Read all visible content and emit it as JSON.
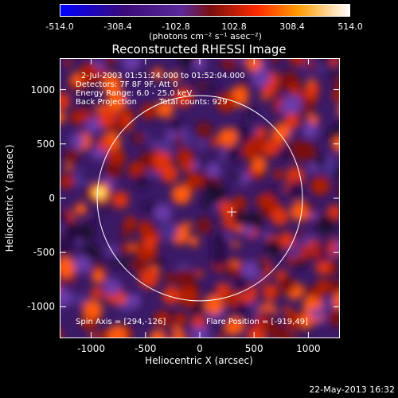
{
  "colorbar": {
    "tick_labels": [
      "-514.0",
      "-308.4",
      "-102.8",
      "102.8",
      "308.4",
      "514.0"
    ],
    "tick_values": [
      -514.0,
      -308.4,
      -102.8,
      102.8,
      308.4,
      514.0
    ],
    "units": "(photons cm⁻² s⁻¹ asec⁻²)",
    "range": [
      -514.0,
      514.0
    ],
    "colors": [
      "#0000ff",
      "#3a0a78",
      "#5b2a9a",
      "#7a0e0e",
      "#ff2a00",
      "#ff9a00",
      "#ffffff"
    ]
  },
  "annotations": {
    "time": "2-Jul-2003 01:51:24.000 to 01:52:04.000",
    "detectors": "Detectors: 7F 8F 9F, Att 0",
    "energy": "Energy Range: 6.0 - 25.0 keV",
    "method": "Back Projection",
    "counts": "Total counts: 929",
    "spin_axis": "Spin Axis = [294,-126]",
    "flare_position": "Flare Position = [-919,49]"
  },
  "footer": {
    "date": "22-May-2013 16:32"
  },
  "chart_data": {
    "type": "heatmap",
    "title": "Reconstructed RHESSI Image",
    "xlabel": "Heliocentric X (arcsec)",
    "ylabel": "Heliocentric Y (arcsec)",
    "xlim": [
      -1290,
      1290
    ],
    "ylim": [
      -1290,
      1290
    ],
    "x_ticks": [
      -1000,
      -500,
      0,
      500,
      1000
    ],
    "x_tick_labels": [
      "-1000",
      "-500",
      "0",
      "500",
      "1000"
    ],
    "y_ticks": [
      1000,
      500,
      0,
      -500,
      -1000
    ],
    "y_tick_labels": [
      "1000",
      "500",
      "0",
      "-500",
      "-1000"
    ],
    "solar_disk": {
      "center": [
        0,
        0
      ],
      "radius_arcsec": 945
    },
    "spin_axis_marker": [
      294,
      -126
    ],
    "peak_source": {
      "x": -919,
      "y": 49,
      "value": 514.0
    },
    "grid": false
  }
}
